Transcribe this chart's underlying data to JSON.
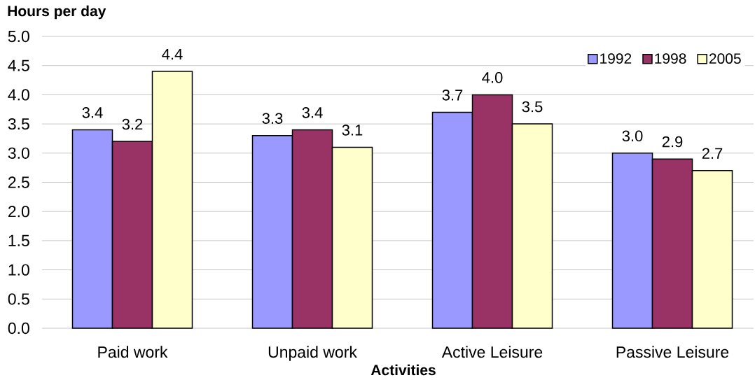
{
  "chart_data": {
    "type": "bar",
    "xlabel": "Activities",
    "ylabel": "Hours per day",
    "categories": [
      "Paid work",
      "Unpaid work",
      "Active Leisure",
      "Passive Leisure"
    ],
    "series": [
      {
        "name": "1992",
        "color": "#9999ff",
        "values": [
          3.4,
          3.3,
          3.7,
          3.0
        ],
        "value_labels": [
          "3.4",
          "3.3",
          "3.7",
          "3.0"
        ]
      },
      {
        "name": "1998",
        "color": "#993366",
        "values": [
          3.2,
          3.4,
          4.0,
          2.9
        ],
        "value_labels": [
          "3.2",
          "3.4",
          "4.0",
          "2.9"
        ]
      },
      {
        "name": "2005",
        "color": "#ffffcc",
        "values": [
          4.4,
          3.1,
          3.5,
          2.7
        ],
        "value_labels": [
          "4.4",
          "3.1",
          "3.5",
          "2.7"
        ]
      }
    ],
    "ylim": [
      0,
      5
    ],
    "yticks": [
      {
        "value": 0,
        "label": "0.0"
      },
      {
        "value": 0.5,
        "label": "0.5"
      },
      {
        "value": 1,
        "label": "1.0"
      },
      {
        "value": 1.5,
        "label": "1.5"
      },
      {
        "value": 2,
        "label": "2.0"
      },
      {
        "value": 2.5,
        "label": "2.5"
      },
      {
        "value": 3,
        "label": "3.0"
      },
      {
        "value": 3.5,
        "label": "3.5"
      },
      {
        "value": 4,
        "label": "4.0"
      },
      {
        "value": 4.5,
        "label": "4.5"
      },
      {
        "value": 5,
        "label": "5.0"
      }
    ],
    "grid": "y",
    "legend": "top right"
  }
}
